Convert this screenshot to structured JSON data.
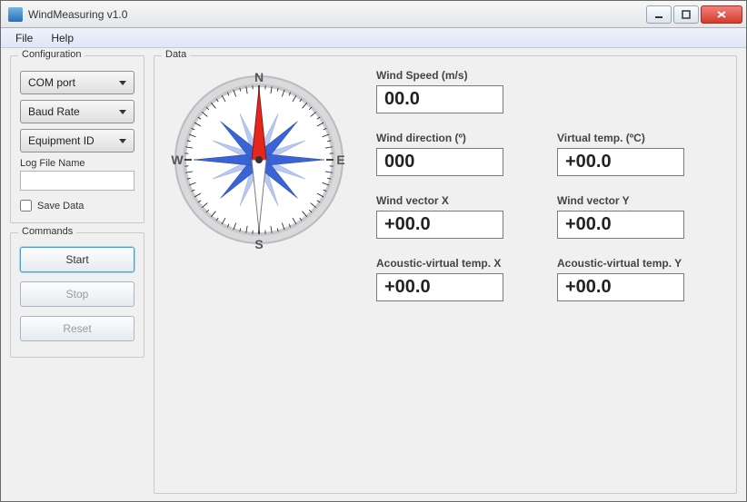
{
  "window": {
    "title": "WindMeasuring v1.0"
  },
  "menubar": {
    "file": "File",
    "help": "Help"
  },
  "config": {
    "group_title": "Configuration",
    "com_port_label": "COM port",
    "baud_rate_label": "Baud Rate",
    "equipment_id_label": "Equipment ID",
    "log_file_name_label": "Log File Name",
    "log_file_name_value": "",
    "save_data_label": "Save Data",
    "save_data_checked": false
  },
  "commands": {
    "group_title": "Commands",
    "start_label": "Start",
    "stop_label": "Stop",
    "reset_label": "Reset"
  },
  "data": {
    "group_title": "Data",
    "compass": {
      "direction_deg": 0,
      "cardinals": {
        "n": "N",
        "e": "E",
        "s": "S",
        "w": "W"
      },
      "colors": {
        "ring_outer": "#d8dadc",
        "ring_inner": "#c6c8cb",
        "tick": "#1e1e1e",
        "rose_main": "#3a63d6",
        "rose_sub": "#9fb6ef",
        "needle_north": "#e4261d",
        "needle_south": "#ffffff",
        "needle_border": "#2b2b2b",
        "label": "#5a5a5a",
        "face": "#ffffff"
      }
    },
    "readouts": {
      "wind_speed": {
        "label": "Wind Speed (m/s)",
        "value": "00.0"
      },
      "wind_dir": {
        "label": "Wind direction (º)",
        "value": "000"
      },
      "virtual_temp": {
        "label": "Virtual temp. (ºC)",
        "value": "+00.0"
      },
      "vec_x": {
        "label": "Wind vector X",
        "value": "+00.0"
      },
      "vec_y": {
        "label": "Wind vector Y",
        "value": "+00.0"
      },
      "avt_x": {
        "label": "Acoustic-virtual temp. X",
        "value": "+00.0"
      },
      "avt_y": {
        "label": "Acoustic-virtual temp. Y",
        "value": "+00.0"
      }
    }
  },
  "style": {
    "window_bg": "#f0f0f0",
    "group_border": "#c9c9c9",
    "readout_border": "#7a7a7a",
    "readout_font_size_pt": 15,
    "label_font_size_pt": 9
  }
}
